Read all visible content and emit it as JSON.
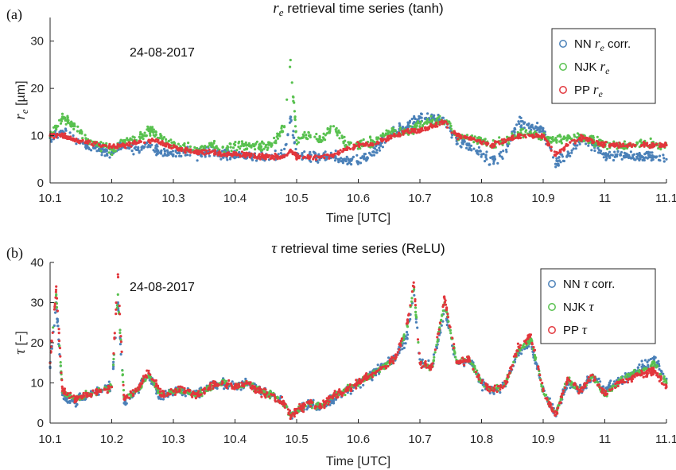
{
  "colors": {
    "nn": "#4a80b8",
    "njk": "#58c14f",
    "pp": "#e2363c"
  },
  "chart_data": [
    {
      "type": "scatter",
      "panel_label": "(a)",
      "title_symbol": "r",
      "title_subscript": "e",
      "title_rest": " retrieval time series (tanh)",
      "xlabel": "Time [UTC]",
      "ylabel_symbol": "r",
      "ylabel_subscript": "e",
      "ylabel_unit": " [µm]",
      "annotation": "24-08-2017",
      "xlim": [
        10.1,
        11.1
      ],
      "ylim": [
        0,
        35
      ],
      "xticks": [
        "10.1",
        "10.2",
        "10.3",
        "10.4",
        "10.5",
        "10.6",
        "10.7",
        "10.8",
        "10.9",
        "11",
        "11.1"
      ],
      "yticks": [
        "0",
        "10",
        "20",
        "30"
      ],
      "legend_position": "top-right",
      "legend": [
        {
          "prefix": "NN ",
          "sym": "r",
          "sub": "e",
          "suffix": " corr.",
          "color_key": "nn"
        },
        {
          "prefix": "NJK ",
          "sym": "r",
          "sub": "e",
          "suffix": "",
          "color_key": "njk"
        },
        {
          "prefix": "PP ",
          "sym": "r",
          "sub": "e",
          "suffix": "",
          "color_key": "pp"
        }
      ],
      "series": [
        {
          "name": "NN r_e corr.",
          "color_key": "nn",
          "x": [
            10.1,
            10.12,
            10.14,
            10.16,
            10.18,
            10.2,
            10.22,
            10.24,
            10.26,
            10.28,
            10.3,
            10.32,
            10.34,
            10.36,
            10.38,
            10.4,
            10.42,
            10.44,
            10.46,
            10.48,
            10.49,
            10.5,
            10.52,
            10.54,
            10.56,
            10.58,
            10.6,
            10.62,
            10.64,
            10.66,
            10.68,
            10.7,
            10.72,
            10.74,
            10.76,
            10.78,
            10.8,
            10.82,
            10.84,
            10.86,
            10.88,
            10.9,
            10.92,
            10.94,
            10.96,
            10.98,
            11.0,
            11.02,
            11.04,
            11.06,
            11.08,
            11.1
          ],
          "y": [
            9.5,
            11,
            9,
            8,
            7,
            6.5,
            8,
            7,
            8,
            6.5,
            6,
            6.5,
            6,
            6.5,
            6,
            6,
            5.5,
            5.5,
            5.5,
            6,
            14,
            6,
            5.5,
            5.5,
            5.5,
            5,
            4.5,
            6,
            9,
            11,
            12,
            14,
            13.5,
            13,
            9,
            8,
            6,
            4.5,
            7,
            13,
            12,
            11,
            4,
            6,
            9,
            8,
            6,
            6,
            5.5,
            5.5,
            5.5,
            5
          ]
        },
        {
          "name": "NJK r_e",
          "color_key": "njk",
          "x": [
            10.1,
            10.12,
            10.14,
            10.16,
            10.18,
            10.2,
            10.22,
            10.24,
            10.26,
            10.28,
            10.3,
            10.32,
            10.34,
            10.36,
            10.38,
            10.4,
            10.42,
            10.44,
            10.46,
            10.48,
            10.49,
            10.5,
            10.52,
            10.54,
            10.56,
            10.58,
            10.6,
            10.62,
            10.64,
            10.66,
            10.68,
            10.7,
            10.72,
            10.74,
            10.76,
            10.78,
            10.8,
            10.82,
            10.84,
            10.86,
            10.88,
            10.9,
            10.92,
            10.94,
            10.96,
            10.98,
            11.0,
            11.02,
            11.04,
            11.06,
            11.08,
            11.1
          ],
          "y": [
            10,
            14,
            12,
            9,
            8,
            7,
            9,
            9,
            11,
            10,
            8,
            7.5,
            7,
            8,
            7.5,
            8,
            8,
            7.5,
            8,
            12,
            26,
            9,
            10,
            9,
            12,
            8,
            8,
            8.5,
            10,
            11,
            11,
            12,
            13,
            13,
            10,
            9.5,
            9,
            8,
            9,
            10.5,
            10.5,
            10,
            9,
            10,
            10,
            9,
            8,
            8,
            8,
            8.5,
            8,
            8
          ]
        },
        {
          "name": "PP r_e",
          "color_key": "pp",
          "x": [
            10.1,
            10.12,
            10.14,
            10.16,
            10.18,
            10.2,
            10.22,
            10.24,
            10.26,
            10.28,
            10.3,
            10.32,
            10.34,
            10.36,
            10.38,
            10.4,
            10.42,
            10.44,
            10.46,
            10.48,
            10.49,
            10.5,
            10.52,
            10.54,
            10.56,
            10.58,
            10.6,
            10.62,
            10.64,
            10.66,
            10.68,
            10.7,
            10.72,
            10.74,
            10.76,
            10.78,
            10.8,
            10.82,
            10.84,
            10.86,
            10.88,
            10.9,
            10.92,
            10.94,
            10.96,
            10.98,
            11.0,
            11.02,
            11.04,
            11.06,
            11.08,
            11.1
          ],
          "y": [
            10,
            10,
            9,
            8.5,
            8,
            7.5,
            8,
            8.5,
            9,
            8.5,
            7.5,
            7,
            6.5,
            6.5,
            6,
            6,
            6,
            5.5,
            5.5,
            5.5,
            7,
            5.5,
            5.5,
            5.5,
            6,
            7,
            8,
            8,
            9,
            10,
            11,
            11,
            12,
            13,
            10,
            9.5,
            8.5,
            8,
            9,
            10,
            10,
            10,
            6,
            8,
            9.5,
            9,
            8,
            8,
            8,
            8,
            8,
            8
          ]
        }
      ]
    },
    {
      "type": "scatter",
      "panel_label": "(b)",
      "title_symbol": "τ",
      "title_subscript": "",
      "title_rest": " retrieval time series (ReLU)",
      "xlabel": "Time [UTC]",
      "ylabel_symbol": "τ",
      "ylabel_subscript": "",
      "ylabel_unit": " [−]",
      "annotation": "24-08-2017",
      "xlim": [
        10.1,
        11.1
      ],
      "ylim": [
        0,
        40
      ],
      "xticks": [
        "10.1",
        "10.2",
        "10.3",
        "10.4",
        "10.5",
        "10.6",
        "10.7",
        "10.8",
        "10.9",
        "11",
        "11.1"
      ],
      "yticks": [
        "0",
        "10",
        "20",
        "30",
        "40"
      ],
      "legend_position": "top-right",
      "legend": [
        {
          "prefix": "NN ",
          "sym": "τ",
          "sub": "",
          "suffix": " corr.",
          "color_key": "nn"
        },
        {
          "prefix": "NJK ",
          "sym": "τ",
          "sub": "",
          "suffix": "",
          "color_key": "njk"
        },
        {
          "prefix": "PP ",
          "sym": "τ",
          "sub": "",
          "suffix": "",
          "color_key": "pp"
        }
      ],
      "series": [
        {
          "name": "NN τ corr.",
          "color_key": "nn",
          "x": [
            10.1,
            10.11,
            10.12,
            10.14,
            10.16,
            10.18,
            10.2,
            10.21,
            10.22,
            10.24,
            10.26,
            10.28,
            10.3,
            10.32,
            10.34,
            10.36,
            10.38,
            10.4,
            10.42,
            10.44,
            10.46,
            10.48,
            10.49,
            10.52,
            10.54,
            10.56,
            10.58,
            10.6,
            10.62,
            10.64,
            10.66,
            10.68,
            10.69,
            10.7,
            10.72,
            10.74,
            10.76,
            10.78,
            10.8,
            10.82,
            10.84,
            10.86,
            10.88,
            10.9,
            10.92,
            10.94,
            10.96,
            10.98,
            11.0,
            11.02,
            11.04,
            11.06,
            11.08,
            11.1
          ],
          "y": [
            14,
            30,
            7,
            5,
            7,
            8,
            9,
            30,
            5,
            8,
            12,
            6,
            8,
            8,
            7,
            9,
            10,
            9,
            10,
            8,
            7,
            5,
            2,
            5,
            4,
            6,
            8,
            10,
            12,
            14,
            16,
            22,
            33,
            15,
            14,
            28,
            15,
            16,
            10,
            8,
            10,
            18,
            20,
            8,
            2,
            10,
            8,
            12,
            8,
            10,
            12,
            14,
            16,
            11
          ]
        },
        {
          "name": "NJK τ",
          "color_key": "njk",
          "x": [
            10.1,
            10.11,
            10.12,
            10.14,
            10.16,
            10.18,
            10.2,
            10.21,
            10.22,
            10.24,
            10.26,
            10.28,
            10.3,
            10.32,
            10.34,
            10.36,
            10.38,
            10.4,
            10.42,
            10.44,
            10.46,
            10.48,
            10.49,
            10.52,
            10.54,
            10.56,
            10.58,
            10.6,
            10.62,
            10.64,
            10.66,
            10.68,
            10.69,
            10.7,
            10.72,
            10.74,
            10.76,
            10.78,
            10.8,
            10.82,
            10.84,
            10.86,
            10.88,
            10.9,
            10.92,
            10.94,
            10.96,
            10.98,
            11.0,
            11.02,
            11.04,
            11.06,
            11.08,
            11.1
          ],
          "y": [
            15,
            32,
            8,
            6,
            7,
            8,
            9,
            32,
            6,
            8,
            12,
            7,
            8,
            8,
            7,
            9,
            10,
            9,
            10,
            8,
            7,
            5,
            2,
            5,
            4,
            7,
            8,
            10,
            12,
            14,
            16,
            24,
            34,
            15,
            14,
            30,
            15,
            16,
            10,
            8,
            10,
            18,
            21,
            8,
            2,
            11,
            8,
            12,
            7,
            10,
            12,
            13,
            15,
            10
          ]
        },
        {
          "name": "PP τ",
          "color_key": "pp",
          "x": [
            10.1,
            10.11,
            10.12,
            10.14,
            10.16,
            10.18,
            10.2,
            10.21,
            10.22,
            10.24,
            10.26,
            10.28,
            10.3,
            10.32,
            10.34,
            10.36,
            10.38,
            10.4,
            10.42,
            10.44,
            10.46,
            10.48,
            10.49,
            10.52,
            10.54,
            10.56,
            10.58,
            10.6,
            10.62,
            10.64,
            10.66,
            10.68,
            10.69,
            10.7,
            10.72,
            10.74,
            10.76,
            10.78,
            10.8,
            10.82,
            10.84,
            10.86,
            10.88,
            10.9,
            10.92,
            10.94,
            10.96,
            10.98,
            11.0,
            11.02,
            11.04,
            11.06,
            11.08,
            11.1
          ],
          "y": [
            15,
            34,
            8,
            6,
            7,
            8,
            9,
            37,
            6,
            8,
            13,
            7,
            8,
            8,
            7,
            9,
            10,
            9,
            10,
            8,
            7,
            5,
            2,
            5,
            4,
            7,
            8,
            10,
            12,
            14,
            16,
            25,
            35,
            15,
            14,
            31,
            15,
            16,
            10,
            8,
            10,
            19,
            22,
            8,
            2,
            11,
            8,
            12,
            7,
            10,
            11,
            12,
            13,
            9
          ]
        }
      ]
    }
  ]
}
